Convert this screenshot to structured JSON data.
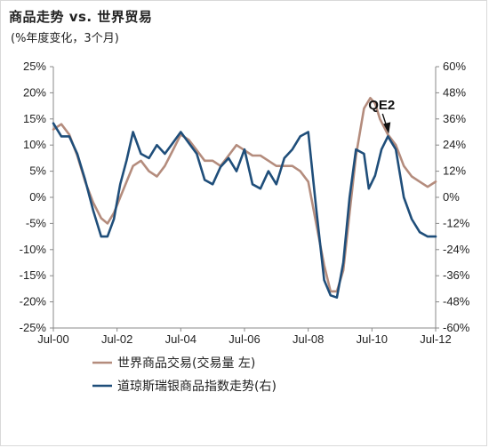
{
  "header": {
    "title": "商品走势 vs. 世界贸易",
    "subtitle": "(%年度变化，3个月)"
  },
  "colors": {
    "trade": "#b48c7d",
    "dj": "#1f4e7a"
  },
  "chart_data": {
    "type": "line",
    "title": "商品走势 vs. 世界贸易",
    "subtitle": "(%年度变化，3个月)",
    "x_tick_labels": [
      "Jul-00",
      "Jul-02",
      "Jul-04",
      "Jul-06",
      "Jul-08",
      "Jul-10",
      "Jul-12"
    ],
    "xlim": [
      2000.5,
      2012.5
    ],
    "left_axis": {
      "ylim": [
        -25,
        25
      ],
      "ticks": [
        "-25%",
        "-20%",
        "-15%",
        "-10%",
        "-5%",
        "0%",
        "5%",
        "10%",
        "15%",
        "20%",
        "25%"
      ]
    },
    "right_axis": {
      "ylim": [
        -60,
        60
      ],
      "ticks": [
        "-60%",
        "-48%",
        "-36%",
        "-24%",
        "-12%",
        "0%",
        "12%",
        "24%",
        "36%",
        "48%",
        "60%"
      ]
    },
    "grid": false,
    "legend_position": "bottom",
    "annotation": {
      "text": "QE2",
      "points_to_x": 2011.0
    },
    "series": [
      {
        "name": "世界商品交易(交易量 左)",
        "axis": "left",
        "points": [
          [
            2000.5,
            13
          ],
          [
            2000.75,
            14
          ],
          [
            2001.0,
            12
          ],
          [
            2001.25,
            8
          ],
          [
            2001.5,
            3
          ],
          [
            2001.75,
            -1
          ],
          [
            2002.0,
            -4
          ],
          [
            2002.2,
            -5
          ],
          [
            2002.4,
            -3
          ],
          [
            2002.6,
            0
          ],
          [
            2002.8,
            3
          ],
          [
            2003.0,
            6
          ],
          [
            2003.25,
            7
          ],
          [
            2003.5,
            5
          ],
          [
            2003.75,
            4
          ],
          [
            2004.0,
            6
          ],
          [
            2004.25,
            9
          ],
          [
            2004.5,
            12
          ],
          [
            2004.75,
            11
          ],
          [
            2005.0,
            9
          ],
          [
            2005.25,
            7
          ],
          [
            2005.5,
            7
          ],
          [
            2005.75,
            6
          ],
          [
            2006.0,
            8
          ],
          [
            2006.25,
            10
          ],
          [
            2006.5,
            9
          ],
          [
            2006.75,
            8
          ],
          [
            2007.0,
            8
          ],
          [
            2007.25,
            7
          ],
          [
            2007.5,
            6
          ],
          [
            2007.75,
            6
          ],
          [
            2008.0,
            6
          ],
          [
            2008.25,
            5
          ],
          [
            2008.5,
            3
          ],
          [
            2008.75,
            -5
          ],
          [
            2009.0,
            -13
          ],
          [
            2009.2,
            -18
          ],
          [
            2009.4,
            -18
          ],
          [
            2009.6,
            -14
          ],
          [
            2009.8,
            -3
          ],
          [
            2010.0,
            8
          ],
          [
            2010.25,
            17
          ],
          [
            2010.45,
            19
          ],
          [
            2010.6,
            18
          ],
          [
            2010.75,
            15
          ],
          [
            2011.0,
            12
          ],
          [
            2011.25,
            10
          ],
          [
            2011.5,
            6
          ],
          [
            2011.75,
            4
          ],
          [
            2012.0,
            3
          ],
          [
            2012.25,
            2
          ],
          [
            2012.5,
            3
          ]
        ]
      },
      {
        "name": "道琼斯瑞银商品指数走势(右)",
        "axis": "right",
        "points": [
          [
            2000.5,
            34
          ],
          [
            2000.75,
            28
          ],
          [
            2001.0,
            28
          ],
          [
            2001.25,
            20
          ],
          [
            2001.5,
            8
          ],
          [
            2001.75,
            -6
          ],
          [
            2002.0,
            -18
          ],
          [
            2002.2,
            -18
          ],
          [
            2002.4,
            -10
          ],
          [
            2002.6,
            6
          ],
          [
            2002.8,
            17
          ],
          [
            2003.0,
            30
          ],
          [
            2003.25,
            20
          ],
          [
            2003.5,
            18
          ],
          [
            2003.75,
            24
          ],
          [
            2004.0,
            20
          ],
          [
            2004.25,
            25
          ],
          [
            2004.5,
            30
          ],
          [
            2004.75,
            25
          ],
          [
            2005.0,
            20
          ],
          [
            2005.25,
            8
          ],
          [
            2005.5,
            6
          ],
          [
            2005.75,
            14
          ],
          [
            2006.0,
            18
          ],
          [
            2006.25,
            12
          ],
          [
            2006.5,
            22
          ],
          [
            2006.75,
            6
          ],
          [
            2007.0,
            4
          ],
          [
            2007.25,
            12
          ],
          [
            2007.5,
            6
          ],
          [
            2007.75,
            18
          ],
          [
            2008.0,
            22
          ],
          [
            2008.25,
            28
          ],
          [
            2008.5,
            30
          ],
          [
            2008.75,
            -5
          ],
          [
            2009.0,
            -38
          ],
          [
            2009.2,
            -45
          ],
          [
            2009.4,
            -46
          ],
          [
            2009.6,
            -30
          ],
          [
            2009.8,
            0
          ],
          [
            2010.0,
            22
          ],
          [
            2010.25,
            20
          ],
          [
            2010.4,
            4
          ],
          [
            2010.6,
            10
          ],
          [
            2010.8,
            22
          ],
          [
            2011.0,
            28
          ],
          [
            2011.25,
            22
          ],
          [
            2011.5,
            0
          ],
          [
            2011.75,
            -10
          ],
          [
            2012.0,
            -16
          ],
          [
            2012.25,
            -18
          ],
          [
            2012.5,
            -18
          ]
        ]
      }
    ]
  }
}
